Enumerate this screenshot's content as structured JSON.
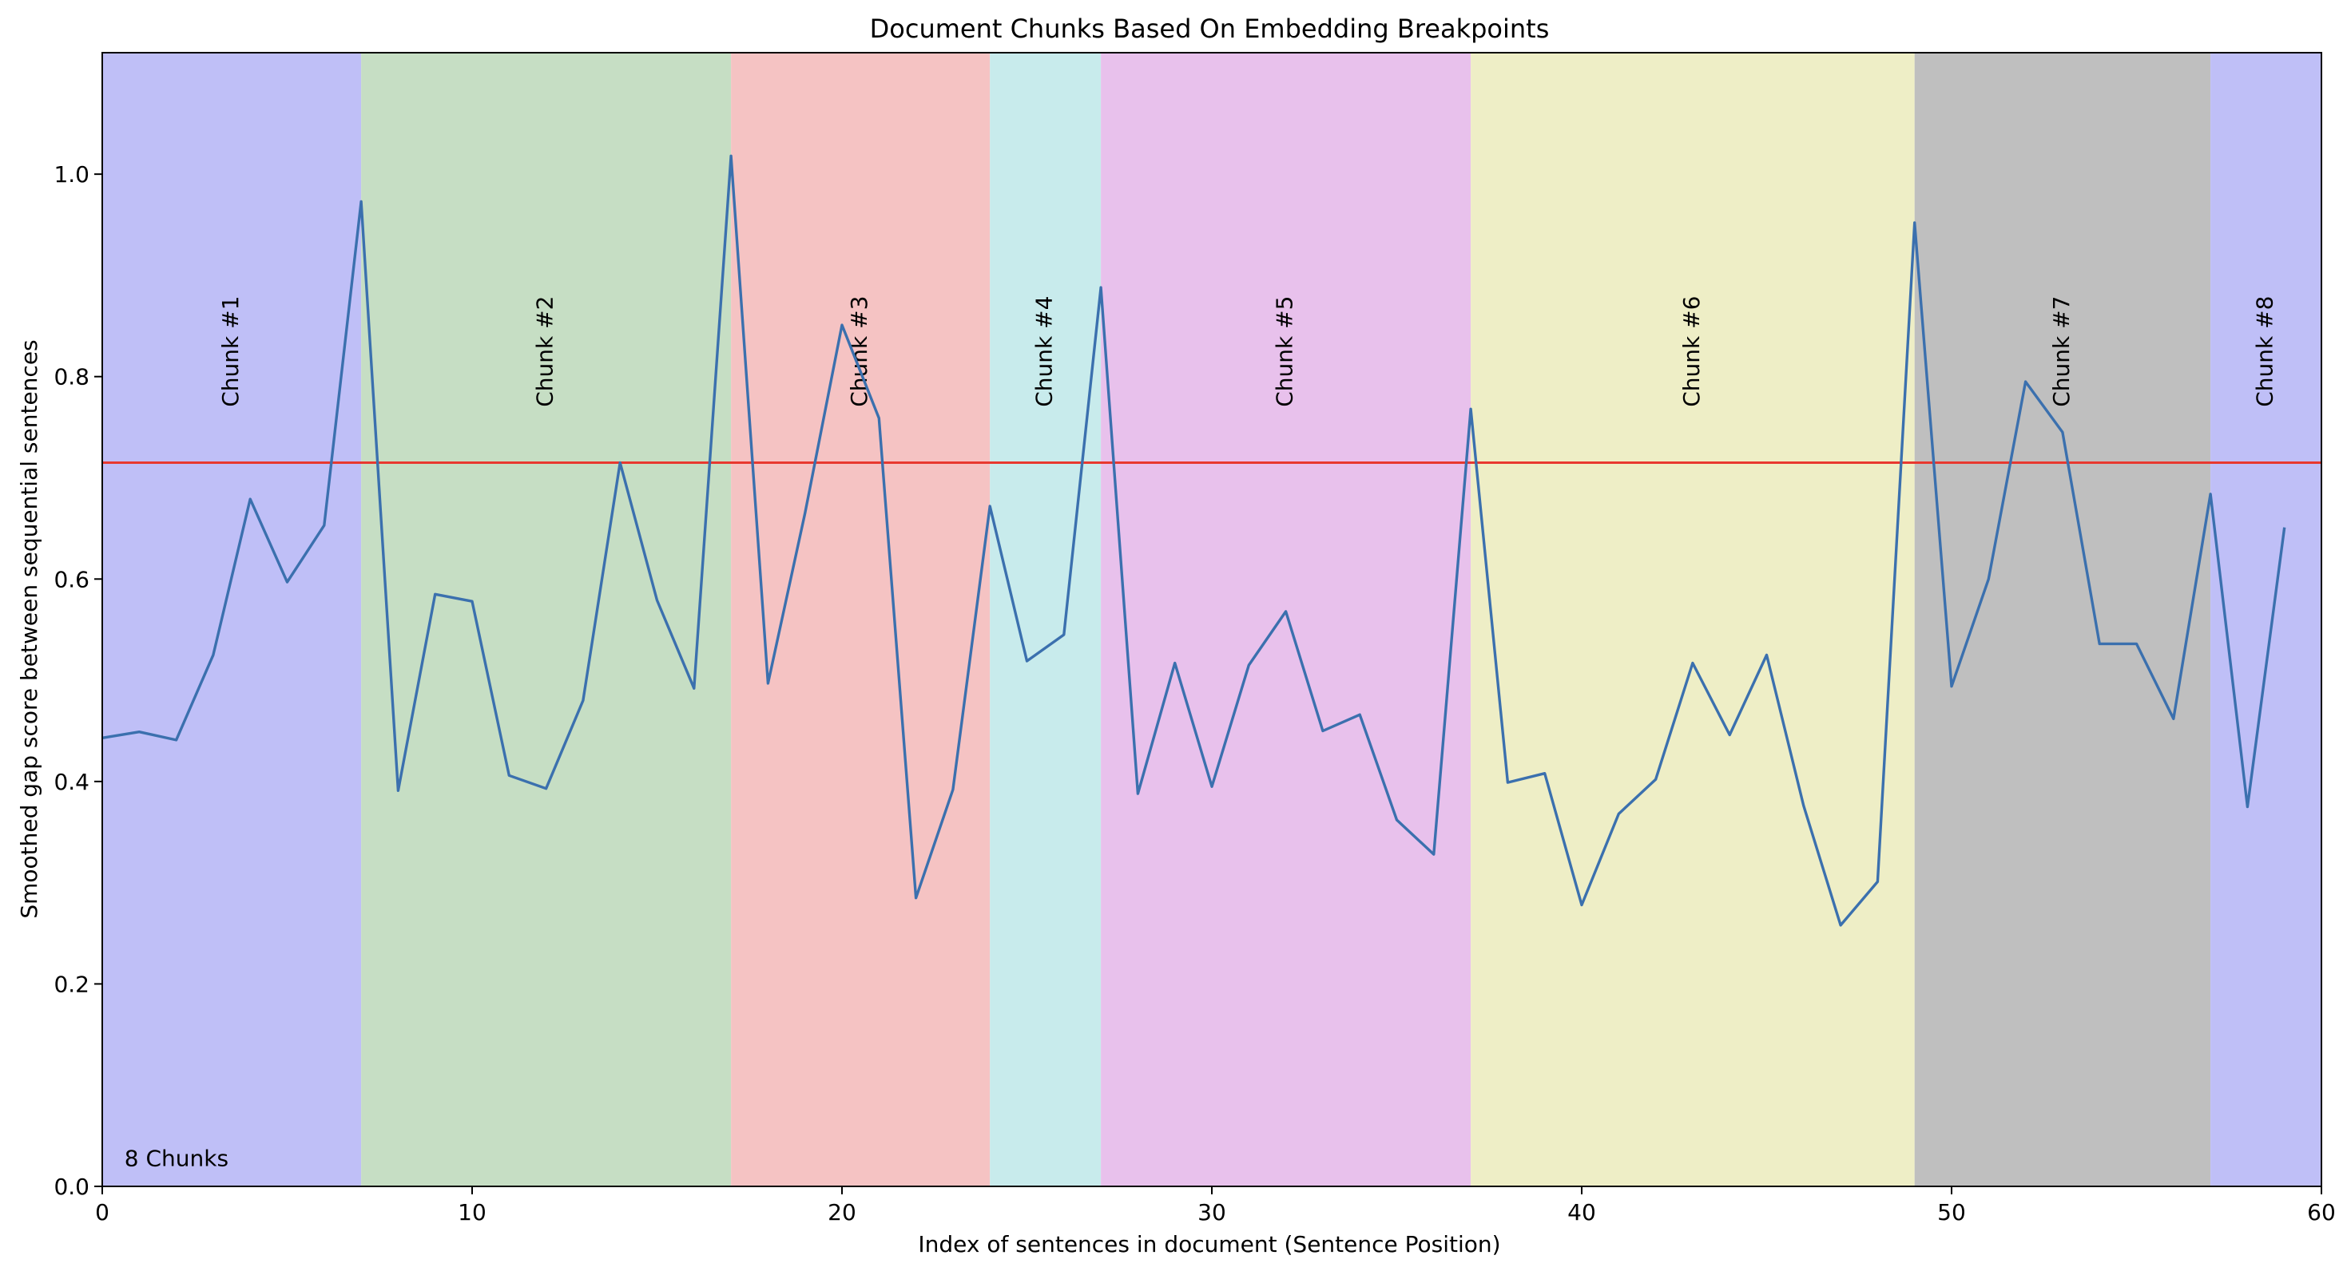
{
  "chart_data": {
    "type": "line",
    "title": "Document Chunks Based On Embedding Breakpoints",
    "xlabel": "Index of sentences in document (Sentence Position)",
    "ylabel": "Smoothed gap score between sequential sentences",
    "xlim": [
      0,
      60
    ],
    "ylim": [
      0,
      1.12
    ],
    "xticks": [
      0,
      10,
      20,
      30,
      40,
      50,
      60
    ],
    "yticks": [
      "0.0",
      "0.2",
      "0.4",
      "0.6",
      "0.8",
      "1.0"
    ],
    "grid": false,
    "threshold": 0.715,
    "threshold_color": "#e8382f",
    "line_color": "#3b70ae",
    "annotation": "8 Chunks",
    "x": [
      0,
      1,
      2,
      3,
      4,
      5,
      6,
      7,
      8,
      9,
      10,
      11,
      12,
      13,
      14,
      15,
      16,
      17,
      18,
      19,
      20,
      21,
      22,
      23,
      24,
      25,
      26,
      27,
      28,
      29,
      30,
      31,
      32,
      33,
      34,
      35,
      36,
      37,
      38,
      39,
      40,
      41,
      42,
      43,
      44,
      45,
      46,
      47,
      48,
      49,
      50,
      51,
      52,
      53,
      54,
      55,
      56,
      57,
      58,
      59
    ],
    "y": [
      0.443,
      0.449,
      0.441,
      0.525,
      0.679,
      0.597,
      0.653,
      0.973,
      0.391,
      0.585,
      0.578,
      0.406,
      0.393,
      0.48,
      0.715,
      0.579,
      0.492,
      1.018,
      0.497,
      0.665,
      0.851,
      0.759,
      0.285,
      0.392,
      0.672,
      0.519,
      0.545,
      0.888,
      0.388,
      0.517,
      0.395,
      0.515,
      0.568,
      0.45,
      0.466,
      0.362,
      0.328,
      0.768,
      0.399,
      0.408,
      0.278,
      0.368,
      0.402,
      0.517,
      0.446,
      0.525,
      0.376,
      0.258,
      0.301,
      0.952,
      0.494,
      0.6,
      0.795,
      0.745,
      0.536,
      0.536,
      0.462,
      0.684,
      0.375,
      0.651
    ],
    "chunks": [
      {
        "label": "Chunk #1",
        "start": 0,
        "end": 7,
        "color": "#bfbff7"
      },
      {
        "label": "Chunk #2",
        "start": 7,
        "end": 17,
        "color": "#c6dec4"
      },
      {
        "label": "Chunk #3",
        "start": 17,
        "end": 24,
        "color": "#f5c3c3"
      },
      {
        "label": "Chunk #4",
        "start": 24,
        "end": 27,
        "color": "#c8ebec"
      },
      {
        "label": "Chunk #5",
        "start": 27,
        "end": 37,
        "color": "#e8c1ec"
      },
      {
        "label": "Chunk #6",
        "start": 37,
        "end": 49,
        "color": "#eeeec6"
      },
      {
        "label": "Chunk #7",
        "start": 49,
        "end": 57,
        "color": "#bfbfbf"
      },
      {
        "label": "Chunk #8",
        "start": 57,
        "end": 60,
        "color": "#bfbff7"
      }
    ]
  }
}
